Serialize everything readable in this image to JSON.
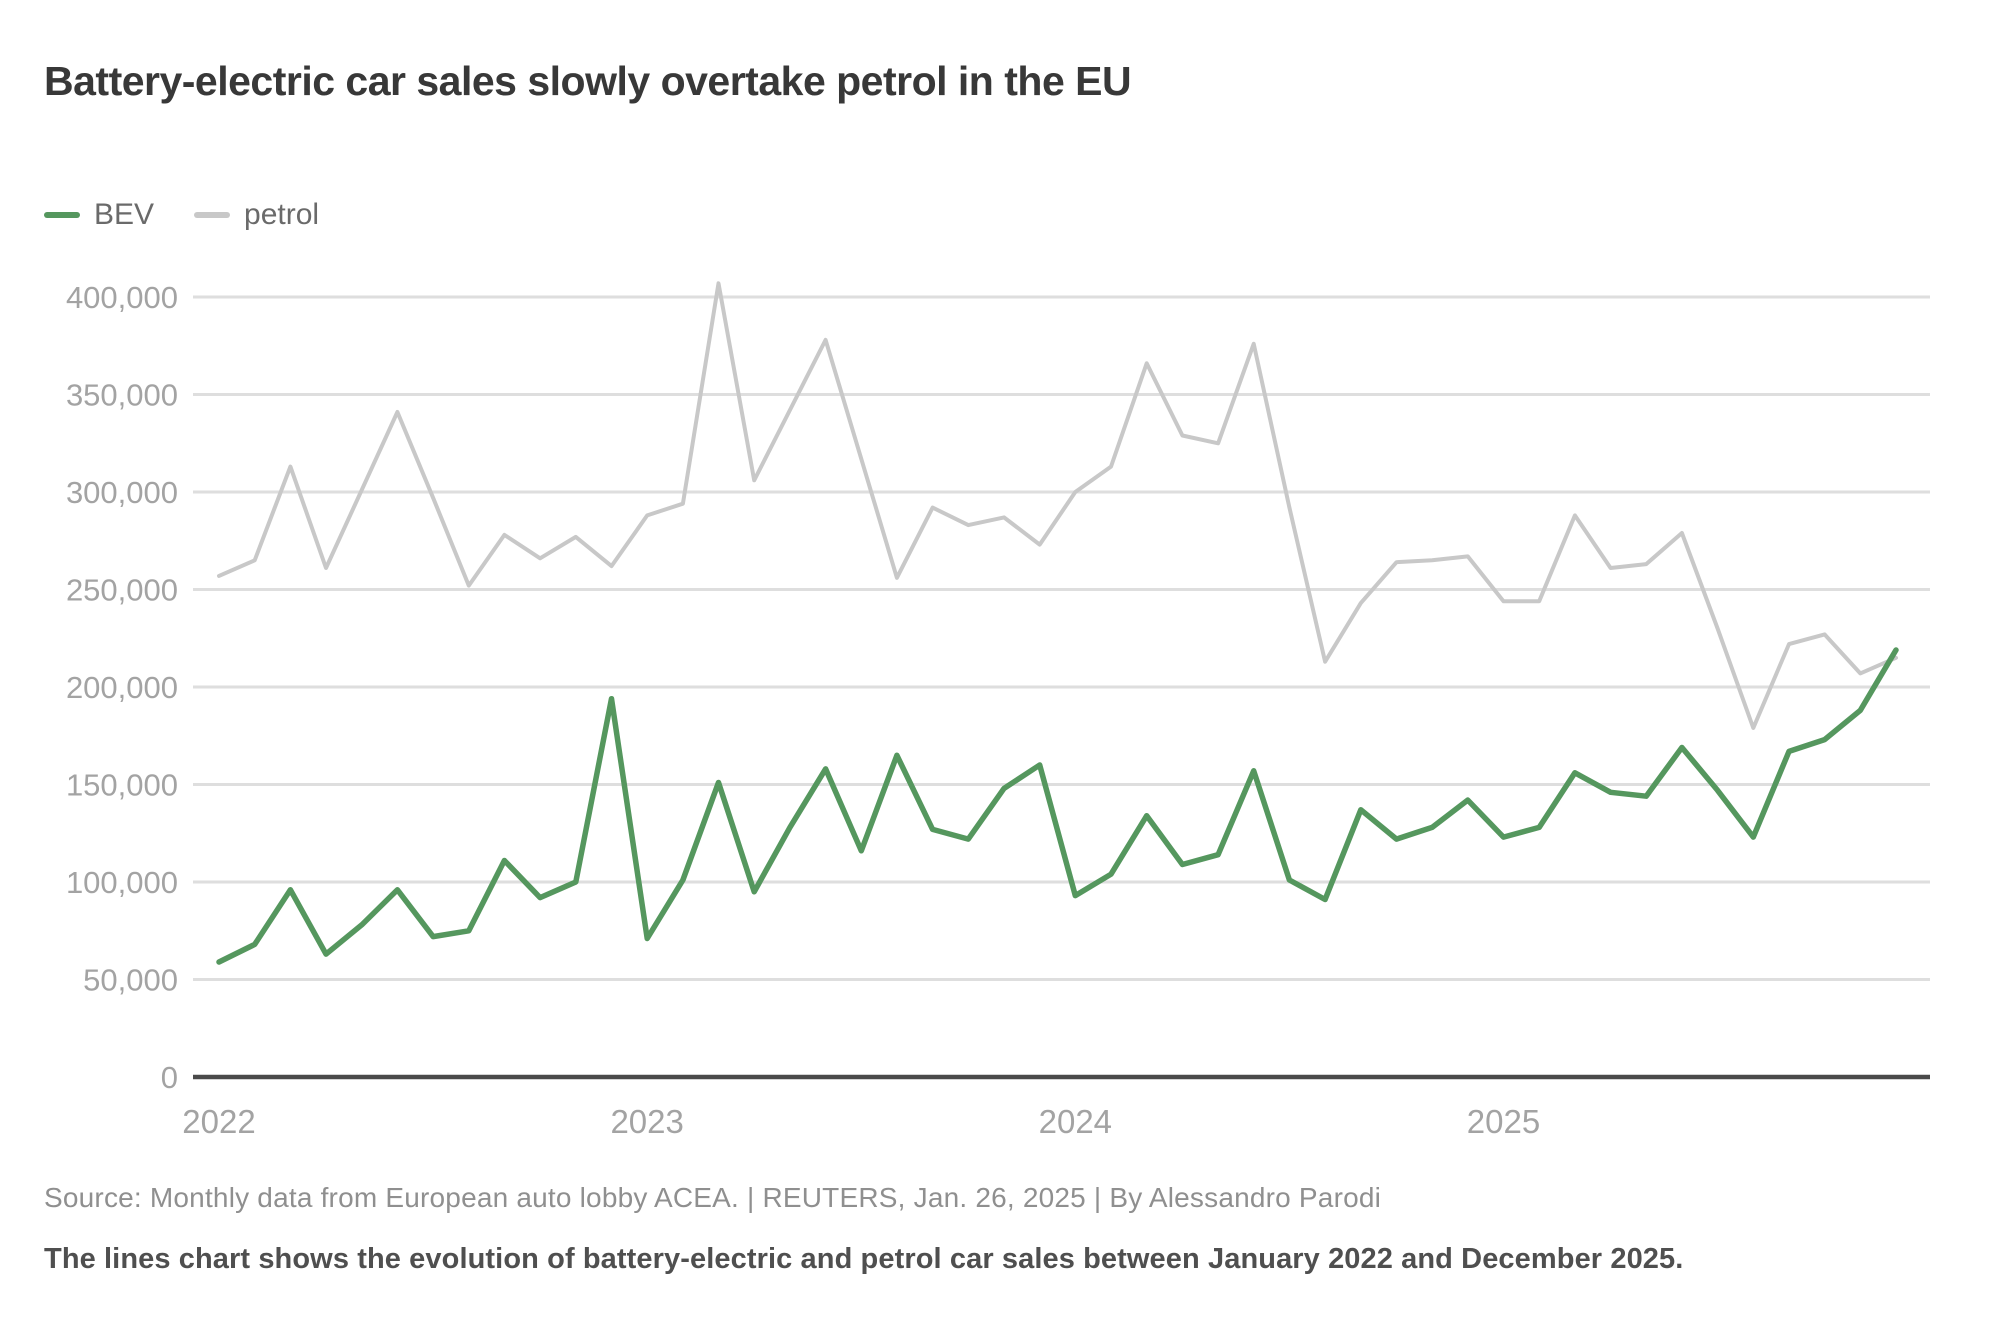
{
  "title": "Battery-electric car sales slowly overtake petrol in the EU",
  "legend": {
    "bev": "BEV",
    "petrol": "petrol"
  },
  "colors": {
    "bev": "#55975e",
    "petrol": "#c8c8c8",
    "axis": "#4a4a4a",
    "grid": "#dedede",
    "tick_text": "#a3a3a3",
    "title_text": "#383838",
    "source_text": "#8f8f8f",
    "caption_text": "#4f4f4f",
    "background": "#ffffff"
  },
  "footer": {
    "source": "Source: Monthly data from European auto lobby ACEA. | REUTERS, Jan. 26, 2025 | By Alessandro Parodi",
    "caption": "The lines chart shows the evolution of battery-electric and petrol car sales between January 2022 and December 2025."
  },
  "chart_data": {
    "type": "line",
    "title": "Battery-electric car sales slowly overtake petrol in the EU",
    "xlabel": "",
    "ylabel": "",
    "ylim": [
      0,
      400000
    ],
    "grid": "horizontal",
    "legend_position": "top-left",
    "y_ticks": [
      {
        "label": "0",
        "value": 0
      },
      {
        "label": "50,000",
        "value": 50000
      },
      {
        "label": "100,000",
        "value": 100000
      },
      {
        "label": "150,000",
        "value": 150000
      },
      {
        "label": "200,000",
        "value": 200000
      },
      {
        "label": "250,000",
        "value": 250000
      },
      {
        "label": "300,000",
        "value": 300000
      },
      {
        "label": "350,000",
        "value": 350000
      },
      {
        "label": "400,000",
        "value": 400000
      }
    ],
    "x_ticks": [
      {
        "label": "2022",
        "month_index": 0
      },
      {
        "label": "2023",
        "month_index": 12
      },
      {
        "label": "2024",
        "month_index": 24
      },
      {
        "label": "2025",
        "month_index": 36
      }
    ],
    "months": [
      "Jan 2022",
      "Feb 2022",
      "Mar 2022",
      "Apr 2022",
      "May 2022",
      "Jun 2022",
      "Jul 2022",
      "Aug 2022",
      "Sep 2022",
      "Oct 2022",
      "Nov 2022",
      "Dec 2022",
      "Jan 2023",
      "Feb 2023",
      "Mar 2023",
      "Apr 2023",
      "May 2023",
      "Jun 2023",
      "Jul 2023",
      "Aug 2023",
      "Sep 2023",
      "Oct 2023",
      "Nov 2023",
      "Dec 2023",
      "Jan 2024",
      "Feb 2024",
      "Mar 2024",
      "Apr 2024",
      "May 2024",
      "Jun 2024",
      "Jul 2024",
      "Aug 2024",
      "Sep 2024",
      "Oct 2024",
      "Nov 2024",
      "Dec 2024",
      "Jan 2025",
      "Feb 2025",
      "Mar 2025",
      "Apr 2025",
      "May 2025",
      "Jun 2025",
      "Jul 2025",
      "Aug 2025",
      "Sep 2025",
      "Oct 2025",
      "Nov 2025",
      "Dec 2025"
    ],
    "series": [
      {
        "name": "petrol",
        "color_key": "petrol",
        "stroke_width": 4,
        "values": [
          257000,
          265000,
          313000,
          261000,
          301000,
          341000,
          297000,
          252000,
          278000,
          266000,
          277000,
          262000,
          288000,
          294000,
          407000,
          306000,
          342000,
          378000,
          317000,
          256000,
          292000,
          283000,
          287000,
          273000,
          300000,
          313000,
          366000,
          329000,
          325000,
          376000,
          292000,
          213000,
          243000,
          264000,
          265000,
          267000,
          244000,
          244000,
          288000,
          261000,
          263000,
          279000,
          230000,
          179000,
          222000,
          227000,
          207000,
          215000
        ]
      },
      {
        "name": "BEV",
        "color_key": "bev",
        "stroke_width": 5.5,
        "values": [
          59000,
          68000,
          96000,
          63000,
          78000,
          96000,
          72000,
          75000,
          111000,
          92000,
          100000,
          194000,
          71000,
          101000,
          151000,
          95000,
          128000,
          158000,
          116000,
          165000,
          127000,
          122000,
          148000,
          160000,
          93000,
          104000,
          134000,
          109000,
          114000,
          157000,
          101000,
          91000,
          137000,
          122000,
          128000,
          142000,
          123000,
          128000,
          156000,
          146000,
          144000,
          169000,
          147000,
          123000,
          167000,
          173000,
          188000,
          219000
        ]
      }
    ]
  }
}
